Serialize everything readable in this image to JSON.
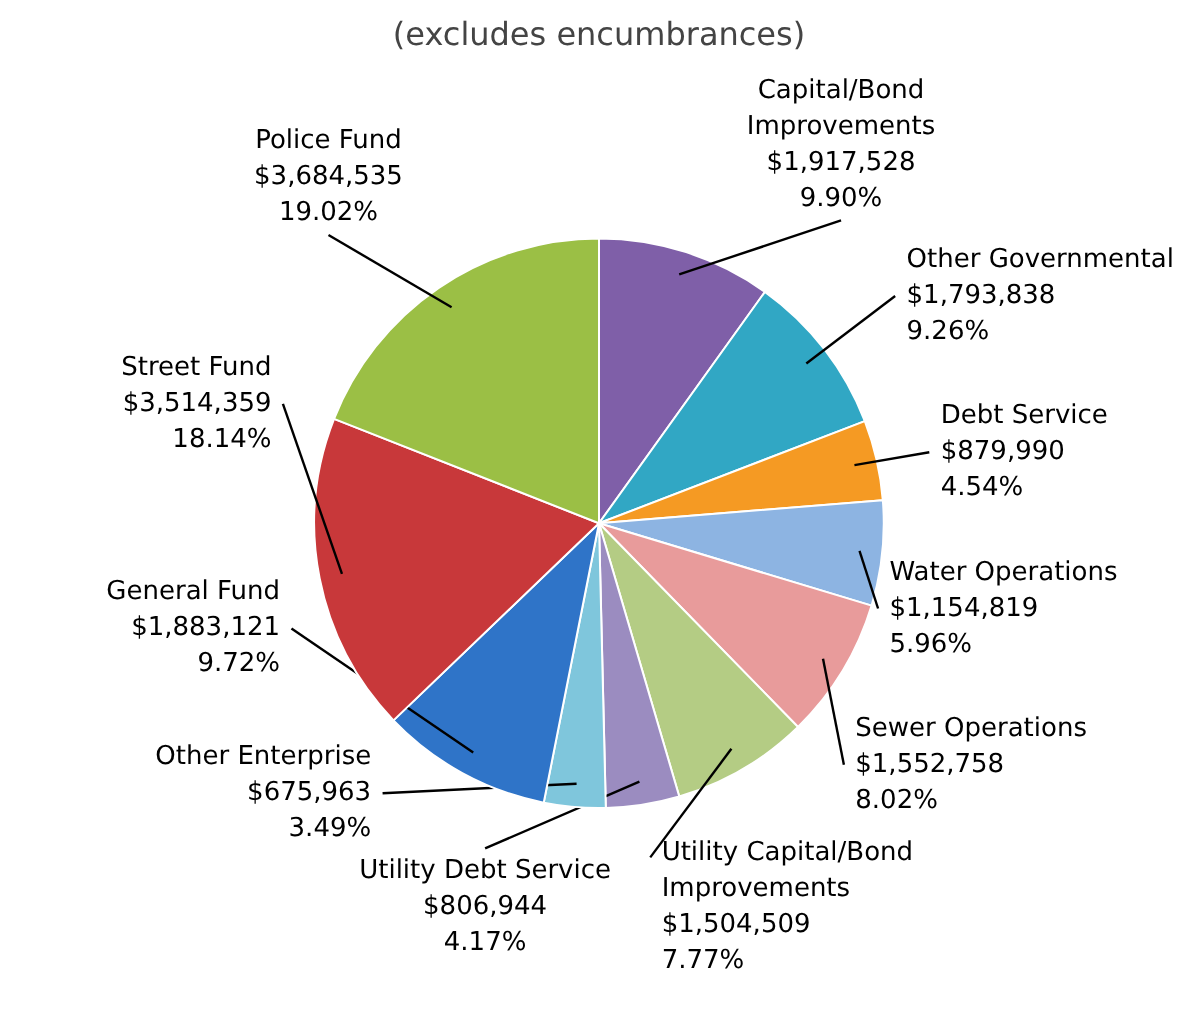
{
  "chart_data": {
    "type": "pie",
    "title": "(excludes encumbrances)",
    "categories": [
      "Capital/Bond Improvements",
      "Other Governmental",
      "Debt Service",
      "Water Operations",
      "Sewer Operations",
      "Utility Capital/Bond Improvements",
      "Utility Debt Service",
      "Other Enterprise",
      "General Fund",
      "Street Fund",
      "Police Fund"
    ],
    "values": [
      1917528,
      1793838,
      879990,
      1154819,
      1552758,
      1504509,
      806944,
      675963,
      1883121,
      3514359,
      3684535
    ],
    "colors": [
      "#7f5fa8",
      "#31a7c4",
      "#f59a23",
      "#8db4e2",
      "#e89b9b",
      "#b4cc84",
      "#9b8cc0",
      "#7fc6dc",
      "#2f74c8",
      "#c8383a",
      "#9bbf45"
    ],
    "value_labels": [
      "$1,917,528\n9.90%",
      "$1,793,838\n9.26%",
      "$879,990\n4.54%",
      "$1,154,819\n5.96%",
      "$1,552,758\n8.02%",
      "$1,504,509\n7.77%",
      "$806,944\n4.17%",
      "$675,963\n3.49%",
      "$1,883,121\n9.72%",
      "$3,514,359\n18.14%",
      "$3,684,535\n19.02%"
    ]
  }
}
